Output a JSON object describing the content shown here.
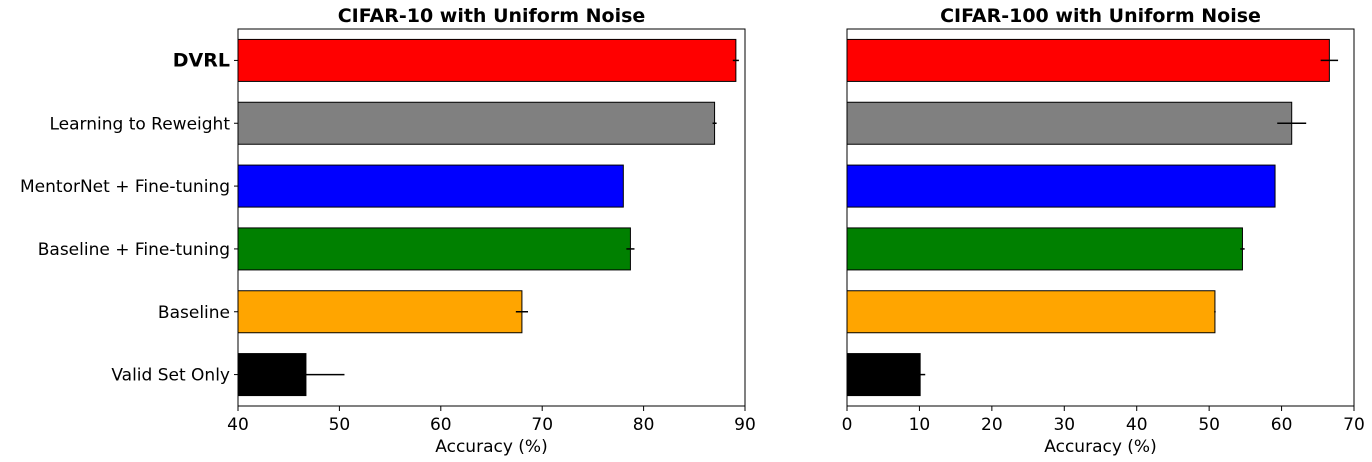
{
  "chart_data": [
    {
      "type": "bar",
      "orientation": "horizontal",
      "title": "CIFAR-10 with Uniform Noise",
      "xlabel": "Accuracy (%)",
      "ylabel": "",
      "xlim": [
        40,
        90
      ],
      "xticks": [
        40,
        50,
        60,
        70,
        80,
        90
      ],
      "grid": false,
      "categories": [
        "DVRL",
        "Learning to Reweight",
        "MentorNet + Fine-tuning",
        "Baseline + Fine-tuning",
        "Baseline",
        "Valid Set Only"
      ],
      "values": [
        89.1,
        87.0,
        78.0,
        78.7,
        68.0,
        46.7
      ],
      "errors": [
        0.3,
        0.2,
        0.0,
        0.4,
        0.6,
        3.8
      ],
      "colors": [
        "#ff0000",
        "#808080",
        "#0000ff",
        "#008000",
        "#ffa500",
        "#000000"
      ],
      "highlight": {
        "category": "DVRL",
        "color": "#e8161b"
      }
    },
    {
      "type": "bar",
      "orientation": "horizontal",
      "title": "CIFAR-100 with Uniform Noise",
      "xlabel": "Accuracy (%)",
      "ylabel": "",
      "xlim": [
        0,
        70
      ],
      "xticks": [
        0,
        10,
        20,
        30,
        40,
        50,
        60,
        70
      ],
      "grid": false,
      "categories": [
        "DVRL",
        "Learning to Reweight",
        "MentorNet + Fine-tuning",
        "Baseline + Fine-tuning",
        "Baseline",
        "Valid Set Only"
      ],
      "values": [
        66.6,
        61.4,
        59.1,
        54.6,
        50.8,
        10.1
      ],
      "errors": [
        1.2,
        2.0,
        0.0,
        0.3,
        0.1,
        0.7
      ],
      "colors": [
        "#ff0000",
        "#808080",
        "#0000ff",
        "#008000",
        "#ffa500",
        "#000000"
      ],
      "show_category_labels": false
    }
  ]
}
